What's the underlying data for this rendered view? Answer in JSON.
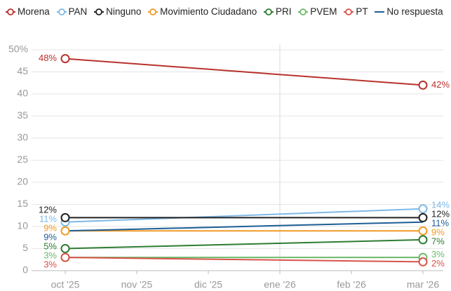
{
  "chart_data": {
    "type": "line",
    "categories": [
      "oct '25",
      "nov '25",
      "dic '25",
      "ene '26",
      "feb '26",
      "mar '26"
    ],
    "ylim": [
      0,
      50
    ],
    "yticks": [
      0,
      5,
      10,
      15,
      20,
      25,
      30,
      35,
      40,
      45,
      {
        "value": 50,
        "label": "50%"
      }
    ],
    "grid": true,
    "series": [
      {
        "name": "Morena",
        "color": "#b8322c",
        "x": [
          "oct '25",
          "mar '26"
        ],
        "values": [
          48,
          42
        ],
        "value_labels": [
          "48%",
          "42%"
        ],
        "marker": true
      },
      {
        "name": "PAN",
        "color": "#7fb9e6",
        "x": [
          "oct '25",
          "mar '26"
        ],
        "values": [
          11,
          14
        ],
        "value_labels": [
          "11%",
          "14%"
        ],
        "marker": true
      },
      {
        "name": "Ninguno",
        "color": "#222222",
        "x": [
          "oct '25",
          "mar '26"
        ],
        "values": [
          12,
          12
        ],
        "value_labels": [
          "12%",
          "12%"
        ],
        "marker": true
      },
      {
        "name": "Movimiento Ciudadano",
        "color": "#f09a28",
        "x": [
          "oct '25",
          "mar '26"
        ],
        "values": [
          9,
          9
        ],
        "value_labels": [
          "9%",
          "9%"
        ],
        "marker": true
      },
      {
        "name": "PRI",
        "color": "#2e7d32",
        "x": [
          "oct '25",
          "mar '26"
        ],
        "values": [
          5,
          7
        ],
        "value_labels": [
          "5%",
          "7%"
        ],
        "marker": true
      },
      {
        "name": "PVEM",
        "color": "#6dba6a",
        "x": [
          "oct '25",
          "mar '26"
        ],
        "values": [
          3,
          3
        ],
        "value_labels": [
          "3%",
          "3%"
        ],
        "marker": true
      },
      {
        "name": "PT",
        "color": "#d9534a",
        "x": [
          "oct '25",
          "mar '26"
        ],
        "values": [
          3,
          2
        ],
        "value_labels": [
          "3%",
          "2%"
        ],
        "marker": true
      },
      {
        "name": "No respuesta",
        "color": "#1d5e96",
        "x": [
          "oct '25",
          "mar '26"
        ],
        "values": [
          9,
          11
        ],
        "value_labels": [
          "9%",
          "11%"
        ],
        "marker": false
      }
    ]
  }
}
